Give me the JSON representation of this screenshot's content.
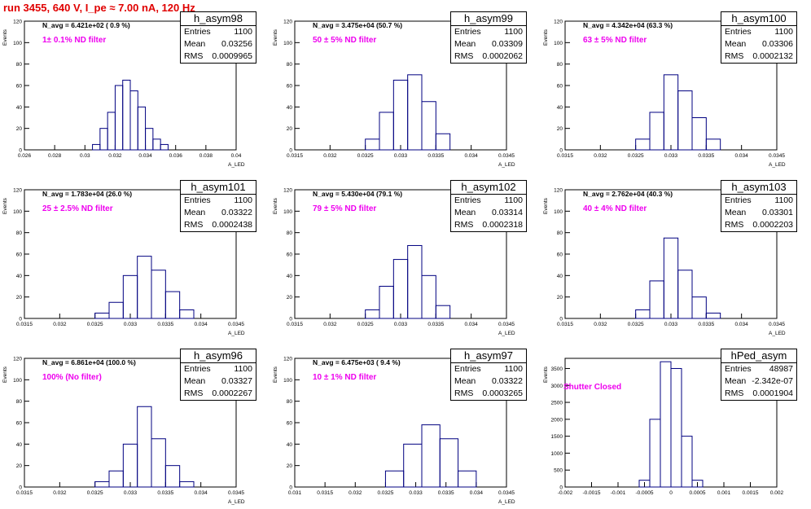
{
  "header": {
    "run_title": "run 3455,   640 V, I_pe ≈ 7.00 nA, 120 Hz"
  },
  "colors": {
    "histogram": "#000080",
    "title": "#e00000",
    "annotation": "#ee00ee"
  },
  "chart_data": [
    {
      "type": "histogram",
      "title": "h_asym98",
      "annotation": "N_avg = 6.421e+02 ( 0.9 %)",
      "filter_label": "1± 0.1% ND filter",
      "stats": {
        "entries_label": "Entries",
        "entries": "1100",
        "mean_label": "Mean",
        "mean": "0.03256",
        "rms_label": "RMS",
        "rms": "0.0009965"
      },
      "xlabel": "A_LED",
      "ylabel": "Events",
      "xlim": [
        0.026,
        0.04
      ],
      "ylim": [
        0,
        120
      ],
      "xticks": [
        "0.026",
        "0.028",
        "0.03",
        "0.032",
        "0.034",
        "0.036",
        "0.038",
        "0.04"
      ],
      "yticks": [
        "0",
        "20",
        "40",
        "60",
        "80",
        "100",
        "120"
      ],
      "bin_edges": [
        0.0305,
        0.031,
        0.0315,
        0.032,
        0.0325,
        0.033,
        0.0335,
        0.034,
        0.0345,
        0.035,
        0.0355
      ],
      "values": [
        5,
        20,
        35,
        60,
        65,
        55,
        40,
        20,
        10,
        5
      ]
    },
    {
      "type": "histogram",
      "title": "h_asym99",
      "annotation": "N_avg = 3.475e+04 (50.7 %)",
      "filter_label": "50 ± 5% ND filter",
      "stats": {
        "entries_label": "Entries",
        "entries": "1100",
        "mean_label": "Mean",
        "mean": "0.03309",
        "rms_label": "RMS",
        "rms": "0.0002062"
      },
      "xlabel": "A_LED",
      "ylabel": "Events",
      "xlim": [
        0.0315,
        0.0345
      ],
      "ylim": [
        0,
        120
      ],
      "xticks": [
        "0.0315",
        "0.032",
        "0.0325",
        "0.033",
        "0.0335",
        "0.034",
        "0.0345"
      ],
      "yticks": [
        "0",
        "20",
        "40",
        "60",
        "80",
        "100",
        "120"
      ],
      "bin_edges": [
        0.0325,
        0.0327,
        0.0329,
        0.0331,
        0.0333,
        0.0335,
        0.0337
      ],
      "values": [
        10,
        35,
        65,
        70,
        45,
        15
      ]
    },
    {
      "type": "histogram",
      "title": "h_asym100",
      "annotation": "N_avg = 4.342e+04 (63.3 %)",
      "filter_label": "63 ± 5% ND filter",
      "stats": {
        "entries_label": "Entries",
        "entries": "1100",
        "mean_label": "Mean",
        "mean": "0.03306",
        "rms_label": "RMS",
        "rms": "0.0002132"
      },
      "xlabel": "A_LED",
      "ylabel": "Events",
      "xlim": [
        0.0315,
        0.0345
      ],
      "ylim": [
        0,
        120
      ],
      "xticks": [
        "0.0315",
        "0.032",
        "0.0325",
        "0.033",
        "0.0335",
        "0.034",
        "0.0345"
      ],
      "yticks": [
        "0",
        "20",
        "40",
        "60",
        "80",
        "100",
        "120"
      ],
      "bin_edges": [
        0.0325,
        0.0327,
        0.0329,
        0.0331,
        0.0333,
        0.0335,
        0.0337
      ],
      "values": [
        10,
        35,
        70,
        55,
        30,
        10
      ]
    },
    {
      "type": "histogram",
      "title": "h_asym101",
      "annotation": "N_avg = 1.783e+04 (26.0 %)",
      "filter_label": "25 ± 2.5% ND filter",
      "stats": {
        "entries_label": "Entries",
        "entries": "1100",
        "mean_label": "Mean",
        "mean": "0.03322",
        "rms_label": "RMS",
        "rms": "0.0002438"
      },
      "xlabel": "A_LED",
      "ylabel": "Events",
      "xlim": [
        0.0315,
        0.0345
      ],
      "ylim": [
        0,
        120
      ],
      "xticks": [
        "0.0315",
        "0.032",
        "0.0325",
        "0.033",
        "0.0335",
        "0.034",
        "0.0345"
      ],
      "yticks": [
        "0",
        "20",
        "40",
        "60",
        "80",
        "100",
        "120"
      ],
      "bin_edges": [
        0.0325,
        0.0327,
        0.0329,
        0.0331,
        0.0333,
        0.0335,
        0.0337,
        0.0339
      ],
      "values": [
        5,
        15,
        40,
        58,
        45,
        25,
        8
      ]
    },
    {
      "type": "histogram",
      "title": "h_asym102",
      "annotation": "N_avg = 5.430e+04 (79.1 %)",
      "filter_label": "79 ± 5% ND filter",
      "stats": {
        "entries_label": "Entries",
        "entries": "1100",
        "mean_label": "Mean",
        "mean": "0.03314",
        "rms_label": "RMS",
        "rms": "0.0002318"
      },
      "xlabel": "A_LED",
      "ylabel": "Events",
      "xlim": [
        0.0315,
        0.0345
      ],
      "ylim": [
        0,
        120
      ],
      "xticks": [
        "0.0315",
        "0.032",
        "0.0325",
        "0.033",
        "0.0335",
        "0.034",
        "0.0345"
      ],
      "yticks": [
        "0",
        "20",
        "40",
        "60",
        "80",
        "100",
        "120"
      ],
      "bin_edges": [
        0.0325,
        0.0327,
        0.0329,
        0.0331,
        0.0333,
        0.0335,
        0.0337
      ],
      "values": [
        8,
        30,
        55,
        68,
        40,
        12
      ]
    },
    {
      "type": "histogram",
      "title": "h_asym103",
      "annotation": "N_avg = 2.762e+04 (40.3 %)",
      "filter_label": "40 ± 4% ND filter",
      "stats": {
        "entries_label": "Entries",
        "entries": "1100",
        "mean_label": "Mean",
        "mean": "0.03301",
        "rms_label": "RMS",
        "rms": "0.0002203"
      },
      "xlabel": "A_LED",
      "ylabel": "Events",
      "xlim": [
        0.0315,
        0.0345
      ],
      "ylim": [
        0,
        120
      ],
      "xticks": [
        "0.0315",
        "0.032",
        "0.0325",
        "0.033",
        "0.0335",
        "0.034",
        "0.0345"
      ],
      "yticks": [
        "0",
        "20",
        "40",
        "60",
        "80",
        "100",
        "120"
      ],
      "bin_edges": [
        0.0325,
        0.0327,
        0.0329,
        0.0331,
        0.0333,
        0.0335,
        0.0337
      ],
      "values": [
        8,
        35,
        75,
        45,
        20,
        5
      ]
    },
    {
      "type": "histogram",
      "title": "h_asym96",
      "annotation": "N_avg = 6.861e+04 (100.0 %)",
      "filter_label": "100% (No filter)",
      "stats": {
        "entries_label": "Entries",
        "entries": "1100",
        "mean_label": "Mean",
        "mean": "0.03327",
        "rms_label": "RMS",
        "rms": "0.0002267"
      },
      "xlabel": "A_LED",
      "ylabel": "Events",
      "xlim": [
        0.0315,
        0.0345
      ],
      "ylim": [
        0,
        120
      ],
      "xticks": [
        "0.0315",
        "0.032",
        "0.0325",
        "0.033",
        "0.0335",
        "0.034",
        "0.0345"
      ],
      "yticks": [
        "0",
        "20",
        "40",
        "60",
        "80",
        "100",
        "120"
      ],
      "bin_edges": [
        0.0325,
        0.0327,
        0.0329,
        0.0331,
        0.0333,
        0.0335,
        0.0337,
        0.0339
      ],
      "values": [
        5,
        15,
        40,
        75,
        45,
        20,
        5
      ]
    },
    {
      "type": "histogram",
      "title": "h_asym97",
      "annotation": "N_avg = 6.475e+03 ( 9.4 %)",
      "filter_label": "10 ± 1% ND filter",
      "stats": {
        "entries_label": "Entries",
        "entries": "1100",
        "mean_label": "Mean",
        "mean": "0.03322",
        "rms_label": "RMS",
        "rms": "0.0003265"
      },
      "xlabel": "A_LED",
      "ylabel": "Events",
      "xlim": [
        0.031,
        0.0345
      ],
      "ylim": [
        0,
        120
      ],
      "xticks": [
        "0.031",
        "0.0315",
        "0.032",
        "0.0325",
        "0.033",
        "0.0335",
        "0.034",
        "0.0345"
      ],
      "yticks": [
        "0",
        "20",
        "40",
        "60",
        "80",
        "100",
        "120"
      ],
      "bin_edges": [
        0.0325,
        0.0328,
        0.0331,
        0.0334,
        0.0337,
        0.034
      ],
      "values": [
        15,
        40,
        58,
        45,
        15
      ]
    },
    {
      "type": "histogram",
      "title": "hPed_asym",
      "annotation": "",
      "filter_label": "Shutter Closed",
      "stats": {
        "entries_label": "Entries",
        "entries": "48987",
        "mean_label": "Mean",
        "mean": "-2.342e-07",
        "rms_label": "RMS",
        "rms": "0.0001904"
      },
      "xlabel": "",
      "ylabel": "Events",
      "xlim": [
        -0.002,
        0.002
      ],
      "ylim": [
        0,
        3800
      ],
      "xticks": [
        "-0.002",
        "-0.0015",
        "-0.001",
        "-0.0005",
        "0",
        "0.0005",
        "0.001",
        "0.0015",
        "0.002"
      ],
      "yticks": [
        "0",
        "500",
        "1000",
        "1500",
        "2000",
        "2500",
        "3000",
        "3500"
      ],
      "bin_edges": [
        -0.0006,
        -0.0004,
        -0.0002,
        0,
        0.0002,
        0.0004,
        0.0006
      ],
      "values": [
        200,
        2000,
        3700,
        3500,
        1500,
        200
      ]
    }
  ]
}
